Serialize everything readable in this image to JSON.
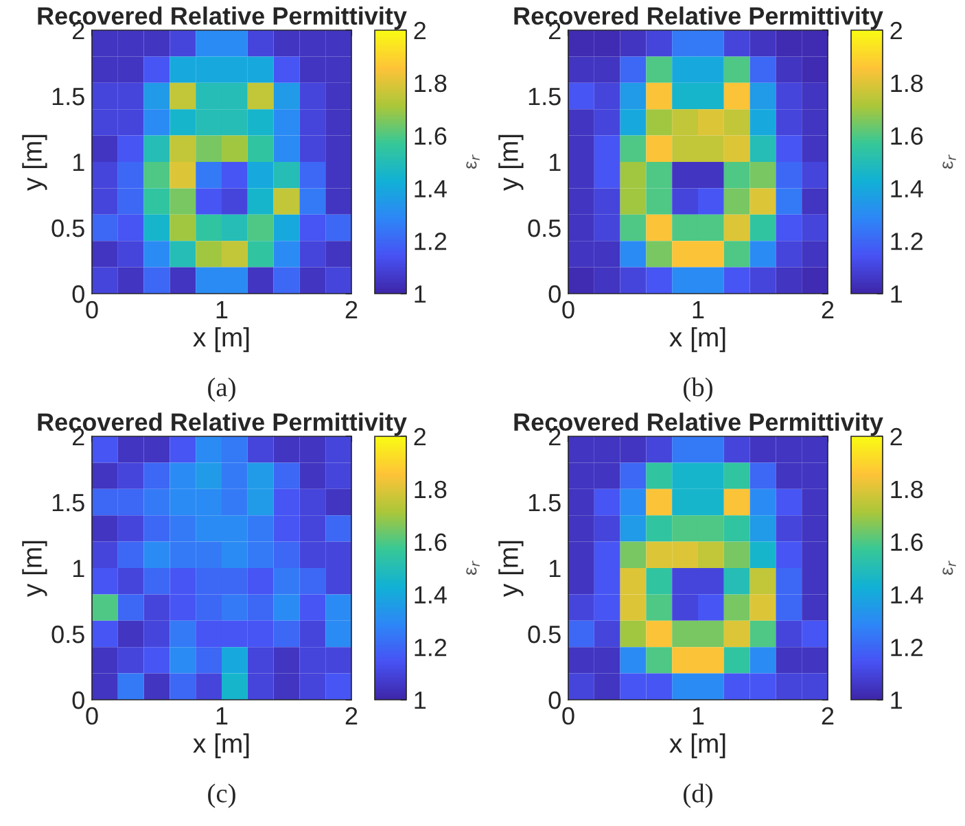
{
  "chart_data": [
    {
      "type": "heatmap",
      "title": "Recovered Relative Permittivity",
      "xlabel": "x [m]",
      "ylabel": "y [m]",
      "clabel": "ε$_{r}$",
      "annotations": [
        "(a)"
      ],
      "xlim": [
        0,
        2
      ],
      "ylim": [
        0,
        2
      ],
      "xticks": [
        0,
        1,
        2
      ],
      "yticks": [
        0,
        0.5,
        1,
        1.5,
        2
      ],
      "clim": [
        1,
        2
      ],
      "cticks": [
        1,
        1.2,
        1.4,
        1.6,
        1.8,
        2
      ],
      "cells": [
        [
          1.05,
          1.05,
          1.05,
          1.1,
          1.3,
          1.3,
          1.1,
          1.05,
          1.05,
          1.05
        ],
        [
          1.05,
          1.05,
          1.15,
          1.4,
          1.4,
          1.4,
          1.4,
          1.15,
          1.05,
          1.05
        ],
        [
          1.1,
          1.1,
          1.35,
          1.75,
          1.5,
          1.5,
          1.75,
          1.35,
          1.1,
          1.05
        ],
        [
          1.1,
          1.1,
          1.3,
          1.45,
          1.5,
          1.5,
          1.45,
          1.3,
          1.1,
          1.05
        ],
        [
          1.05,
          1.15,
          1.5,
          1.75,
          1.65,
          1.7,
          1.55,
          1.3,
          1.1,
          1.05
        ],
        [
          1.1,
          1.2,
          1.6,
          1.8,
          1.25,
          1.15,
          1.4,
          1.5,
          1.2,
          1.05
        ],
        [
          1.1,
          1.2,
          1.55,
          1.65,
          1.15,
          1.1,
          1.45,
          1.75,
          1.25,
          1.05
        ],
        [
          1.2,
          1.15,
          1.45,
          1.7,
          1.55,
          1.5,
          1.6,
          1.4,
          1.15,
          1.2
        ],
        [
          1.05,
          1.1,
          1.3,
          1.5,
          1.7,
          1.75,
          1.55,
          1.3,
          1.1,
          1.05
        ],
        [
          1.1,
          1.05,
          1.2,
          1.05,
          1.3,
          1.3,
          1.05,
          1.2,
          1.05,
          1.1
        ]
      ]
    },
    {
      "type": "heatmap",
      "title": "Recovered Relative Permittivity",
      "xlabel": "x [m]",
      "ylabel": "y [m]",
      "clabel": "ε$_{r}$",
      "annotations": [
        "(b)"
      ],
      "xlim": [
        0,
        2
      ],
      "ylim": [
        0,
        2
      ],
      "xticks": [
        0,
        1,
        2
      ],
      "yticks": [
        0,
        0.5,
        1,
        1.5,
        2
      ],
      "clim": [
        1,
        2
      ],
      "cticks": [
        1,
        1.2,
        1.4,
        1.6,
        1.8,
        2
      ],
      "cells": [
        [
          1.02,
          1.02,
          1.05,
          1.1,
          1.25,
          1.25,
          1.1,
          1.05,
          1.02,
          1.02
        ],
        [
          1.05,
          1.05,
          1.2,
          1.6,
          1.4,
          1.4,
          1.6,
          1.2,
          1.05,
          1.02
        ],
        [
          1.15,
          1.1,
          1.35,
          1.85,
          1.45,
          1.45,
          1.85,
          1.35,
          1.1,
          1.05
        ],
        [
          1.05,
          1.1,
          1.4,
          1.7,
          1.75,
          1.8,
          1.75,
          1.4,
          1.1,
          1.05
        ],
        [
          1.05,
          1.15,
          1.6,
          1.85,
          1.75,
          1.75,
          1.8,
          1.5,
          1.15,
          1.05
        ],
        [
          1.05,
          1.15,
          1.7,
          1.6,
          1.05,
          1.05,
          1.6,
          1.65,
          1.2,
          1.1
        ],
        [
          1.05,
          1.1,
          1.7,
          1.6,
          1.1,
          1.15,
          1.65,
          1.8,
          1.25,
          1.05
        ],
        [
          1.05,
          1.1,
          1.6,
          1.85,
          1.6,
          1.6,
          1.8,
          1.55,
          1.15,
          1.1
        ],
        [
          1.05,
          1.05,
          1.3,
          1.65,
          1.85,
          1.85,
          1.6,
          1.3,
          1.1,
          1.05
        ],
        [
          1.02,
          1.05,
          1.1,
          1.15,
          1.3,
          1.3,
          1.15,
          1.1,
          1.05,
          1.02
        ]
      ]
    },
    {
      "type": "heatmap",
      "title": "Recovered Relative Permittivity",
      "xlabel": "x [m]",
      "ylabel": "y [m]",
      "clabel": "ε$_{r}$",
      "annotations": [
        "(c)"
      ],
      "xlim": [
        0,
        2
      ],
      "ylim": [
        0,
        2
      ],
      "xticks": [
        0,
        1,
        2
      ],
      "yticks": [
        0,
        0.5,
        1,
        1.5,
        2
      ],
      "clim": [
        1,
        2
      ],
      "cticks": [
        1,
        1.2,
        1.4,
        1.6,
        1.8,
        2
      ],
      "cells": [
        [
          1.15,
          1.05,
          1.05,
          1.15,
          1.3,
          1.25,
          1.1,
          1.05,
          1.05,
          1.1
        ],
        [
          1.05,
          1.1,
          1.2,
          1.3,
          1.35,
          1.25,
          1.35,
          1.2,
          1.05,
          1.1
        ],
        [
          1.2,
          1.2,
          1.25,
          1.3,
          1.3,
          1.25,
          1.35,
          1.15,
          1.1,
          1.05
        ],
        [
          1.05,
          1.1,
          1.2,
          1.25,
          1.3,
          1.3,
          1.25,
          1.15,
          1.1,
          1.2
        ],
        [
          1.1,
          1.2,
          1.3,
          1.25,
          1.25,
          1.3,
          1.25,
          1.2,
          1.1,
          1.1
        ],
        [
          1.15,
          1.1,
          1.2,
          1.15,
          1.2,
          1.2,
          1.15,
          1.25,
          1.2,
          1.1
        ],
        [
          1.6,
          1.2,
          1.1,
          1.15,
          1.2,
          1.25,
          1.2,
          1.3,
          1.15,
          1.3
        ],
        [
          1.15,
          1.05,
          1.1,
          1.25,
          1.15,
          1.15,
          1.15,
          1.2,
          1.1,
          1.3
        ],
        [
          1.05,
          1.1,
          1.15,
          1.3,
          1.2,
          1.4,
          1.1,
          1.05,
          1.1,
          1.1
        ],
        [
          1.05,
          1.25,
          1.05,
          1.2,
          1.1,
          1.45,
          1.1,
          1.05,
          1.1,
          1.15
        ]
      ]
    },
    {
      "type": "heatmap",
      "title": "Recovered Relative Permittivity",
      "xlabel": "x [m]",
      "ylabel": "y [m]",
      "clabel": "ε$_{r}$",
      "annotations": [
        "(d)"
      ],
      "xlim": [
        0,
        2
      ],
      "ylim": [
        0,
        2
      ],
      "xticks": [
        0,
        1,
        2
      ],
      "yticks": [
        0,
        0.5,
        1,
        1.5,
        2
      ],
      "clim": [
        1,
        2
      ],
      "cticks": [
        1,
        1.2,
        1.4,
        1.6,
        1.8,
        2
      ],
      "cells": [
        [
          1.05,
          1.05,
          1.05,
          1.1,
          1.25,
          1.25,
          1.1,
          1.05,
          1.05,
          1.05
        ],
        [
          1.05,
          1.05,
          1.2,
          1.55,
          1.45,
          1.45,
          1.55,
          1.2,
          1.05,
          1.05
        ],
        [
          1.05,
          1.15,
          1.3,
          1.85,
          1.45,
          1.45,
          1.85,
          1.3,
          1.15,
          1.05
        ],
        [
          1.05,
          1.1,
          1.35,
          1.55,
          1.6,
          1.6,
          1.55,
          1.35,
          1.1,
          1.05
        ],
        [
          1.05,
          1.15,
          1.65,
          1.8,
          1.8,
          1.75,
          1.65,
          1.45,
          1.15,
          1.05
        ],
        [
          1.05,
          1.15,
          1.8,
          1.55,
          1.1,
          1.1,
          1.5,
          1.75,
          1.2,
          1.05
        ],
        [
          1.1,
          1.15,
          1.8,
          1.6,
          1.1,
          1.15,
          1.65,
          1.8,
          1.2,
          1.05
        ],
        [
          1.2,
          1.1,
          1.7,
          1.85,
          1.65,
          1.65,
          1.8,
          1.6,
          1.1,
          1.15
        ],
        [
          1.05,
          1.05,
          1.3,
          1.6,
          1.85,
          1.85,
          1.55,
          1.3,
          1.05,
          1.05
        ],
        [
          1.1,
          1.05,
          1.15,
          1.15,
          1.3,
          1.3,
          1.15,
          1.15,
          1.1,
          1.1
        ]
      ]
    }
  ]
}
